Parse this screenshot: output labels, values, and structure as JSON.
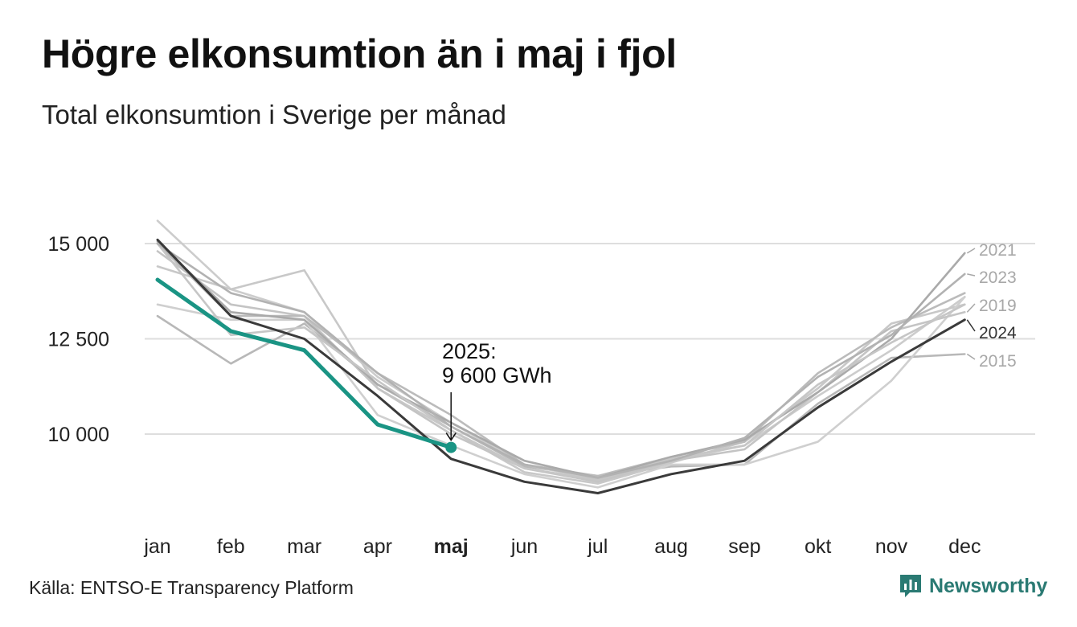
{
  "title": "Högre elkonsumtion än i maj i fjol",
  "subtitle": "Total elkonsumtion i Sverige per månad",
  "source": "Källa: ENTSO-E Transparency Platform",
  "brand": {
    "name": "Newsworthy",
    "logo_icon": "bar-chart-logo-icon",
    "color": "#2a7a73"
  },
  "chart_data": {
    "type": "line",
    "categories": [
      "jan",
      "feb",
      "mar",
      "apr",
      "maj",
      "jun",
      "jul",
      "aug",
      "sep",
      "okt",
      "nov",
      "dec"
    ],
    "highlight_category": "maj",
    "ylim": [
      7500,
      16200
    ],
    "yticks": [
      {
        "value": 10000,
        "label": "10 000"
      },
      {
        "value": 12500,
        "label": "12 500"
      },
      {
        "value": 15000,
        "label": "15 000"
      }
    ],
    "grid": true,
    "series": [
      {
        "name": "2015",
        "color": "#b8b8b8",
        "values": [
          13100,
          11850,
          12900,
          11300,
          10200,
          9150,
          8900,
          9150,
          9200,
          10800,
          12000,
          12100
        ],
        "label": "2015"
      },
      {
        "name": "",
        "color": "#cccccc",
        "values": [
          15600,
          13800,
          13200,
          11500,
          10300,
          9200,
          8800,
          9300,
          9700,
          11000,
          12200,
          13600
        ]
      },
      {
        "name": "",
        "color": "#c8c8c8",
        "values": [
          14400,
          13800,
          14300,
          11200,
          10100,
          9000,
          8700,
          9250,
          9800,
          11200,
          12900,
          13400
        ]
      },
      {
        "name": "",
        "color": "#cfcfcf",
        "values": [
          13400,
          13000,
          13000,
          10500,
          9700,
          8950,
          8600,
          9200,
          9200,
          9800,
          11400,
          13600
        ]
      },
      {
        "name": "2019",
        "color": "#c4c4c4",
        "values": [
          14800,
          13400,
          13100,
          11200,
          10000,
          9100,
          8750,
          9300,
          9600,
          11100,
          12700,
          13200
        ],
        "label": "2019"
      },
      {
        "name": "",
        "color": "#bbbbbb",
        "values": [
          15000,
          13100,
          13100,
          11600,
          10500,
          9200,
          8900,
          9400,
          9800,
          11600,
          12800,
          13700
        ]
      },
      {
        "name": "2021",
        "color": "#aaaaaa",
        "values": [
          15050,
          13200,
          13000,
          11300,
          10300,
          9300,
          8850,
          9400,
          9850,
          11100,
          12500,
          14750
        ],
        "label": "2021"
      },
      {
        "name": "",
        "color": "#c6c6c6",
        "values": [
          15000,
          12600,
          12800,
          11400,
          10100,
          9100,
          8800,
          9350,
          9700,
          11300,
          12400,
          13400
        ]
      },
      {
        "name": "2023",
        "color": "#b2b2b2",
        "values": [
          15000,
          13700,
          13200,
          11600,
          10200,
          9200,
          8850,
          9300,
          9900,
          11500,
          12600,
          14200
        ],
        "label": "2023"
      },
      {
        "name": "2024",
        "color": "#3a3a3a",
        "values": [
          15100,
          13100,
          12500,
          11000,
          9350,
          8750,
          8450,
          8950,
          9300,
          10700,
          11900,
          13000
        ],
        "label": "2024"
      },
      {
        "name": "2025",
        "color": "#1a9484",
        "values": [
          14050,
          12700,
          12200,
          10250,
          9650,
          null,
          null,
          null,
          null,
          null,
          null,
          null
        ]
      }
    ],
    "annotation": {
      "line1": "2025:",
      "line2": "9 600 GWh"
    }
  }
}
